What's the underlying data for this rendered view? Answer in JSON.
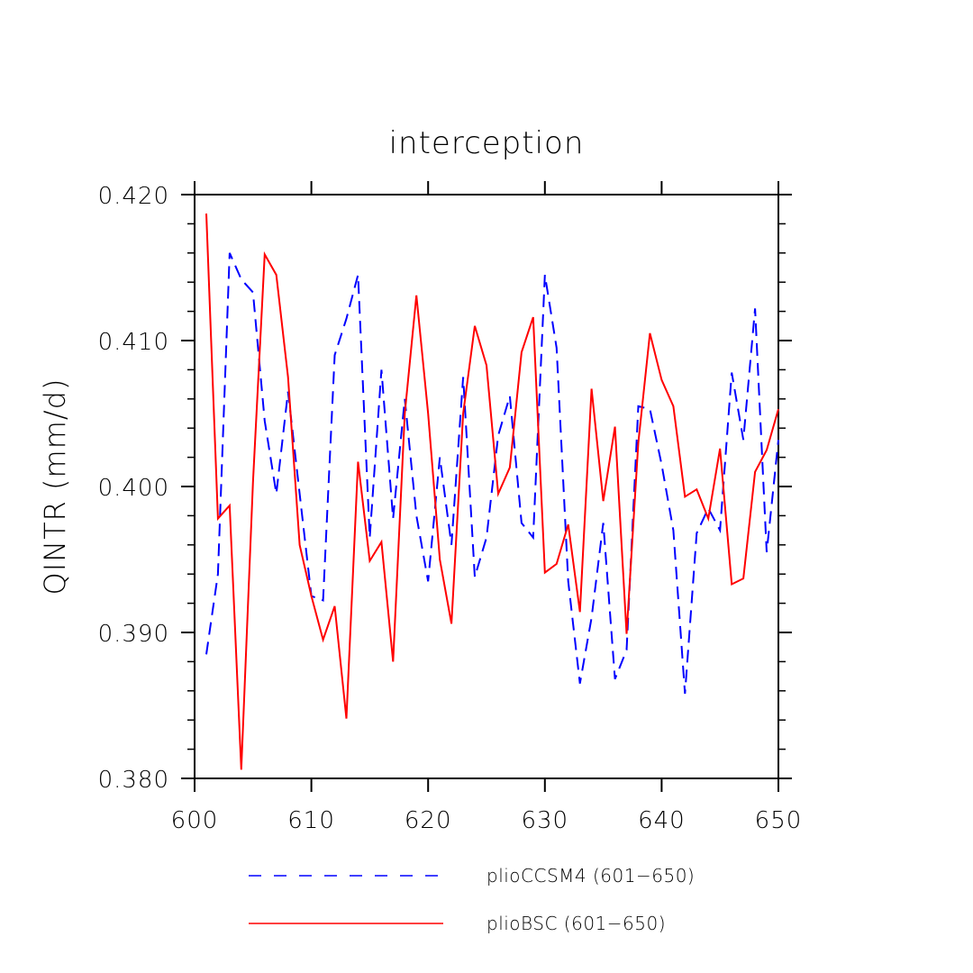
{
  "chart_data": {
    "type": "line",
    "title": "interception",
    "xlabel": "",
    "ylabel": "QINTR  (mm/d)",
    "xlim": [
      600,
      650
    ],
    "ylim": [
      0.38,
      0.42
    ],
    "xticks": [
      "600",
      "610",
      "620",
      "630",
      "640",
      "650"
    ],
    "yticks": [
      "0.380",
      "0.390",
      "0.400",
      "0.410",
      "0.420"
    ],
    "grid": false,
    "legend_position": "bottom",
    "x": [
      601,
      602,
      603,
      604,
      605,
      606,
      607,
      608,
      609,
      610,
      611,
      612,
      613,
      614,
      615,
      616,
      617,
      618,
      619,
      620,
      621,
      622,
      623,
      624,
      625,
      626,
      627,
      628,
      629,
      630,
      631,
      632,
      633,
      634,
      635,
      636,
      637,
      638,
      639,
      640,
      641,
      642,
      643,
      644,
      645,
      646,
      647,
      648,
      649,
      650
    ],
    "series": [
      {
        "name": "plioCCSM4 (601−650)",
        "color": "#0000ff",
        "style": "dashed",
        "values": [
          0.3885,
          0.394,
          0.416,
          0.4142,
          0.4133,
          0.4045,
          0.3995,
          0.4065,
          0.3995,
          0.3925,
          0.3922,
          0.409,
          0.4115,
          0.4145,
          0.3965,
          0.408,
          0.3978,
          0.406,
          0.398,
          0.3935,
          0.402,
          0.396,
          0.4075,
          0.3938,
          0.3965,
          0.4035,
          0.4062,
          0.3975,
          0.3965,
          0.4145,
          0.4095,
          0.3935,
          0.3865,
          0.391,
          0.3975,
          0.3868,
          0.3888,
          0.4055,
          0.4053,
          0.4015,
          0.397,
          0.3858,
          0.3968,
          0.3985,
          0.397,
          0.4078,
          0.4032,
          0.4122,
          0.3955,
          0.4032
        ]
      },
      {
        "name": "plioBSC (601−650)",
        "color": "#ff0000",
        "style": "solid",
        "values": [
          0.4187,
          0.3978,
          0.3987,
          0.3806,
          0.4003,
          0.4159,
          0.4145,
          0.4075,
          0.396,
          0.3925,
          0.3895,
          0.3918,
          0.3841,
          0.4017,
          0.3949,
          0.3962,
          0.388,
          0.405,
          0.4131,
          0.405,
          0.395,
          0.3906,
          0.405,
          0.411,
          0.4083,
          0.3995,
          0.4013,
          0.4092,
          0.4116,
          0.3941,
          0.3947,
          0.3974,
          0.3914,
          0.4067,
          0.399,
          0.4041,
          0.3899,
          0.403,
          0.4105,
          0.4073,
          0.4055,
          0.3993,
          0.3998,
          0.3978,
          0.4026,
          0.3933,
          0.3937,
          0.401,
          0.4025,
          0.4053
        ]
      }
    ]
  }
}
